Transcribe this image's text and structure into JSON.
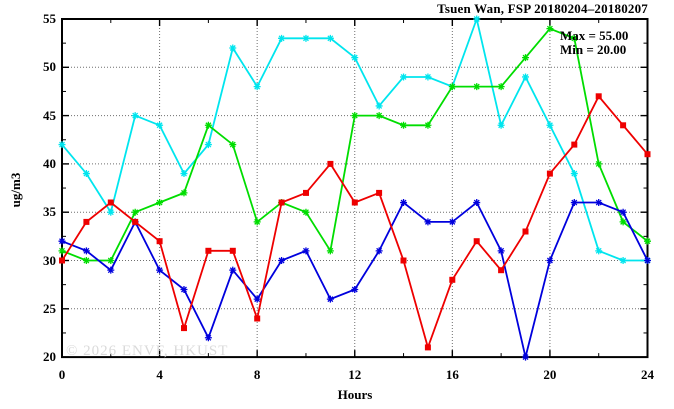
{
  "title": "Tsuen Wan, FSP 20180204–20180207",
  "annotation": {
    "max_label": "Max = 55.00",
    "min_label": "Min = 20.00"
  },
  "watermark": "© 2026 ENVF, HKUST",
  "chart_data": {
    "type": "line",
    "title": "Tsuen Wan, FSP 20180204–20180207",
    "xlabel": "Hours",
    "ylabel": "ug/m3",
    "xlim": [
      0,
      24
    ],
    "ylim": [
      20,
      55
    ],
    "x_major_ticks": [
      0,
      4,
      8,
      12,
      16,
      20,
      24
    ],
    "x_minor_ticks": [
      2,
      6,
      10,
      14,
      18,
      22
    ],
    "y_major_ticks": [
      20,
      25,
      30,
      35,
      40,
      45,
      50,
      55
    ],
    "y_minor_ticks": [
      22.5,
      27.5,
      32.5,
      37.5,
      42.5,
      47.5,
      52.5
    ],
    "grid": true,
    "legend": "none",
    "stats": {
      "max": 55.0,
      "min": 20.0
    },
    "x": [
      0,
      1,
      2,
      3,
      4,
      5,
      6,
      7,
      8,
      9,
      10,
      11,
      12,
      13,
      14,
      15,
      16,
      17,
      18,
      19,
      20,
      21,
      22,
      23,
      24
    ],
    "series": [
      {
        "name": "cyan-series",
        "color": "#00e5ee",
        "marker": "asterisk",
        "values": [
          42,
          39,
          35,
          45,
          44,
          39,
          42,
          52,
          48,
          53,
          53,
          53,
          51,
          46,
          49,
          49,
          48,
          55,
          44,
          49,
          44,
          39,
          31,
          30,
          30
        ]
      },
      {
        "name": "green-series",
        "color": "#00dd00",
        "marker": "asterisk",
        "values": [
          31,
          30,
          30,
          35,
          36,
          37,
          44,
          42,
          34,
          36,
          35,
          31,
          45,
          45,
          44,
          44,
          48,
          48,
          48,
          51,
          54,
          53,
          40,
          34,
          32
        ]
      },
      {
        "name": "blue-series",
        "color": "#0000dd",
        "marker": "asterisk",
        "values": [
          32,
          31,
          29,
          34,
          29,
          27,
          22,
          29,
          26,
          30,
          31,
          26,
          27,
          31,
          36,
          34,
          34,
          36,
          31,
          20,
          30,
          36,
          36,
          35,
          30
        ]
      },
      {
        "name": "red-series",
        "color": "#ee0000",
        "marker": "square",
        "values": [
          30,
          34,
          36,
          34,
          32,
          23,
          31,
          31,
          24,
          36,
          37,
          40,
          36,
          37,
          30,
          21,
          28,
          32,
          29,
          33,
          39,
          42,
          47,
          44,
          41
        ]
      }
    ]
  }
}
